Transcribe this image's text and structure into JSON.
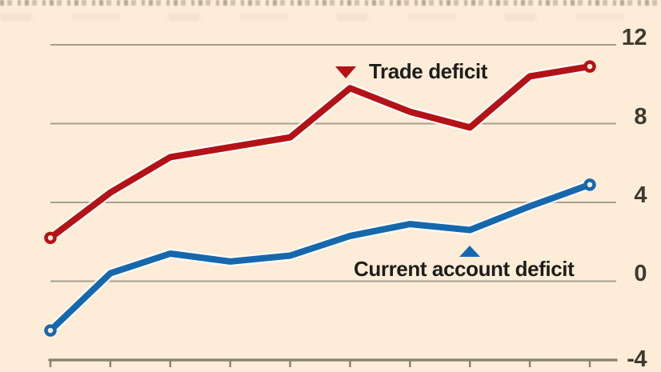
{
  "chart": {
    "legend": {
      "trade_label": "Trade deficit",
      "current_label": "Current account deficit"
    },
    "y_axis": {
      "tick_labels": [
        "12",
        "8",
        "4",
        "0",
        "-4"
      ]
    },
    "colors": {
      "background": "#fcecd8",
      "trade_line": "#b31217",
      "current_line": "#1668ad",
      "gridline": "#a79f8e",
      "axis": "#8c8372",
      "legend_text": "#1f1d1a",
      "tick_text": "#3f3a30",
      "line_halo": "#ffffff"
    }
  },
  "chart_data": {
    "type": "line",
    "x": [
      0,
      1,
      2,
      3,
      4,
      5,
      6,
      7,
      8,
      9
    ],
    "x_tick_labels_visible": false,
    "series": [
      {
        "name": "Trade deficit",
        "color": "#b31217",
        "values": [
          2.2,
          4.5,
          6.3,
          6.8,
          7.3,
          9.8,
          8.6,
          7.8,
          10.4,
          10.9
        ],
        "endpoint_markers": "open-circle",
        "annotation_marker": "triangle-down"
      },
      {
        "name": "Current account deficit",
        "color": "#1668ad",
        "values": [
          -2.5,
          0.4,
          1.4,
          1.0,
          1.3,
          2.3,
          2.9,
          2.6,
          3.8,
          4.9
        ],
        "endpoint_markers": "open-circle",
        "annotation_marker": "triangle-up"
      }
    ],
    "title": "",
    "xlabel": "",
    "ylabel": "",
    "ylim": [
      -4,
      12
    ],
    "yticks": [
      12,
      8,
      4,
      0,
      -4
    ],
    "grid": true,
    "grid_axis": "horizontal",
    "legend_position": "inline-annotations"
  }
}
